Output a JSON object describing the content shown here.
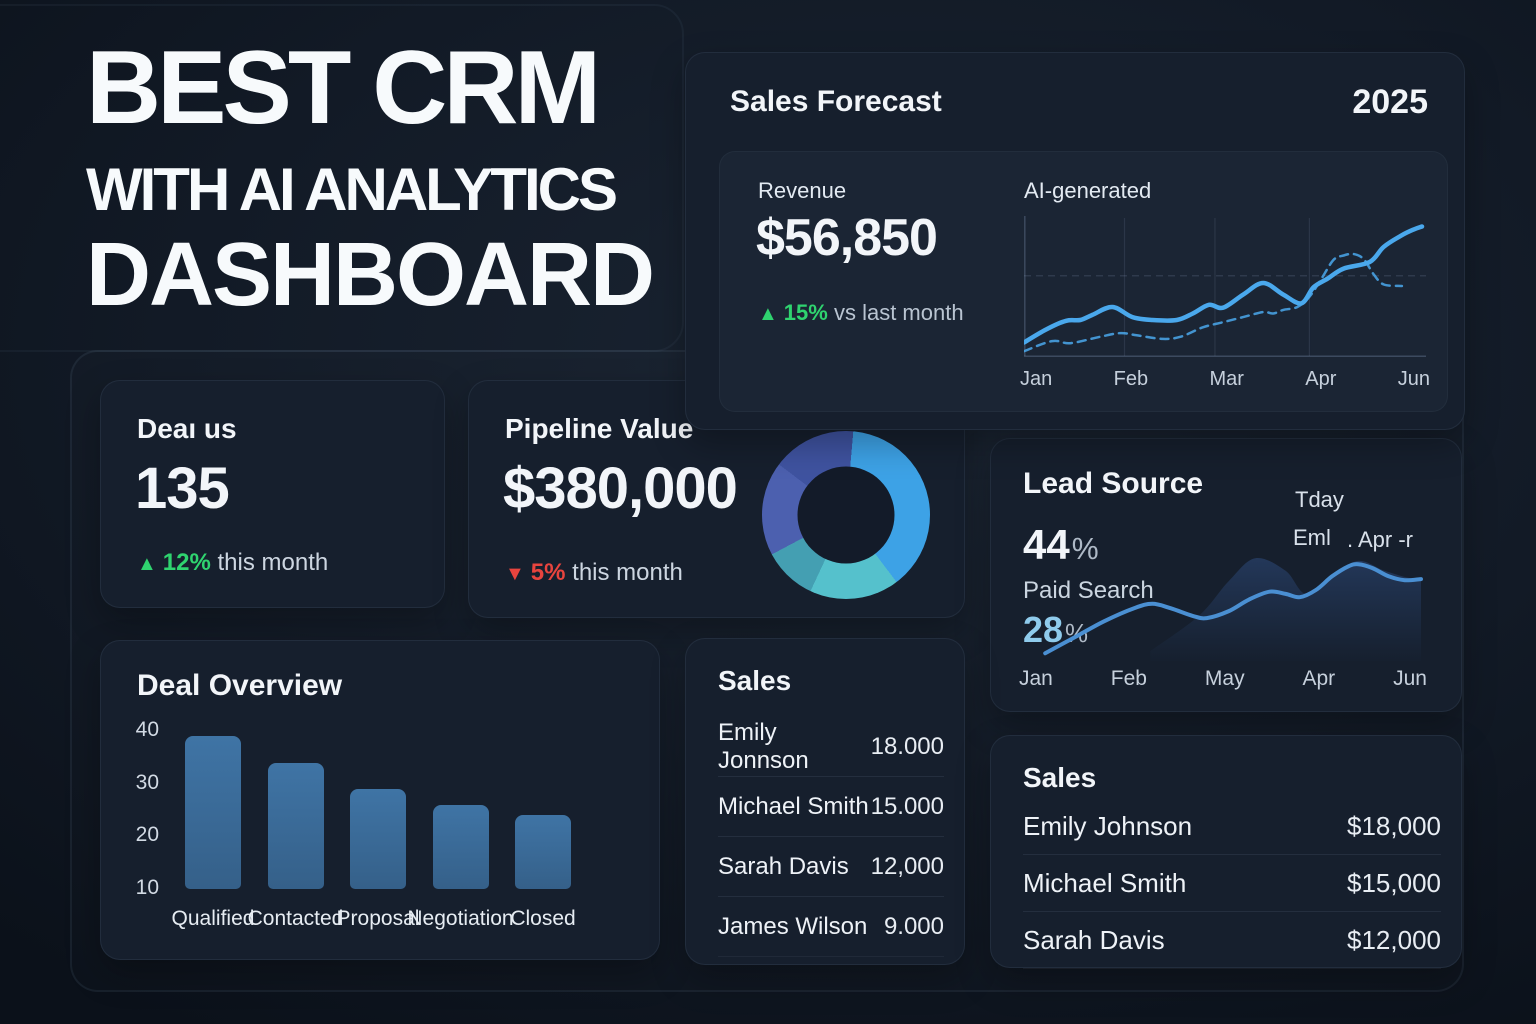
{
  "theme": {
    "accent_blue": "#4aa8ec",
    "green": "#2fd36f",
    "red": "#e8443e",
    "card_bg": "#161f2d"
  },
  "title": {
    "line1": "BEST CRM",
    "line2": "WITH AI ANALYTICS",
    "line3": "DASHBOARD"
  },
  "sales_forecast": {
    "title": "Sales Forecast",
    "year": "2025",
    "revenue_label": "Revenue",
    "revenue_value": "$56,850",
    "delta_pct": "15%",
    "delta_note": "vs last month",
    "ai_label": "AI-generated",
    "chart_data": {
      "type": "line",
      "x_labels": [
        "Jan",
        "Feb",
        "Mar",
        "Apr",
        "Jun"
      ],
      "legend_position": "none",
      "grid": true,
      "series": [
        {
          "name": "forecast",
          "style": "dashed",
          "color": "#4aa8ec",
          "width": 2.5,
          "points": [
            [
              0,
              96
            ],
            [
              7,
              89
            ],
            [
              11.5,
              90.5
            ],
            [
              19,
              86
            ],
            [
              24,
              83.5
            ],
            [
              28,
              85
            ],
            [
              34.5,
              87.5
            ],
            [
              39,
              86
            ],
            [
              44.5,
              79.5
            ],
            [
              49.5,
              76
            ],
            [
              54.5,
              72.5
            ],
            [
              59.5,
              69
            ],
            [
              62,
              70
            ],
            [
              64.5,
              67.5
            ],
            [
              68,
              65.5
            ],
            [
              71,
              58.5
            ],
            [
              74,
              46
            ],
            [
              77,
              33
            ],
            [
              79.5,
              30
            ],
            [
              82,
              29
            ],
            [
              84.5,
              32.5
            ],
            [
              87,
              43
            ],
            [
              89.5,
              50
            ],
            [
              94,
              51
            ]
          ]
        },
        {
          "name": "revenue",
          "style": "solid",
          "color": "#4aa8ec",
          "width": 4.5,
          "points": [
            [
              0,
              90
            ],
            [
              5.5,
              81
            ],
            [
              10.5,
              75
            ],
            [
              14,
              74.5
            ],
            [
              17,
              71
            ],
            [
              22,
              65.5
            ],
            [
              27,
              72.5
            ],
            [
              32,
              74.5
            ],
            [
              38,
              74.5
            ],
            [
              42,
              70
            ],
            [
              46,
              64
            ],
            [
              49.5,
              66
            ],
            [
              54.5,
              57
            ],
            [
              59.5,
              49
            ],
            [
              64.5,
              57
            ],
            [
              69,
              63
            ],
            [
              72,
              52
            ],
            [
              75.5,
              46
            ],
            [
              79.5,
              39
            ],
            [
              86,
              34.5
            ],
            [
              89.5,
              24
            ],
            [
              94,
              16
            ],
            [
              97,
              12
            ],
            [
              99,
              10
            ]
          ]
        }
      ]
    }
  },
  "deal_status": {
    "title": "Deaı us",
    "value": "135",
    "trend_icon": "▲",
    "delta_pct": "12%",
    "delta_note": "this month"
  },
  "pipeline": {
    "title": "Pipeline Value",
    "value": "$380,000",
    "trend_icon": "▼",
    "delta_pct": "5%",
    "delta_note": "this month",
    "chart_data": {
      "type": "donut",
      "start_deg": 5,
      "segments": [
        {
          "label": "segment-1",
          "color": "#3da2e6",
          "sweep_deg": 138
        },
        {
          "label": "segment-2",
          "color": "#55c1cc",
          "sweep_deg": 62
        },
        {
          "label": "segment-3",
          "color": "#449fb2",
          "sweep_deg": 37
        },
        {
          "label": "segment-4",
          "color": "#4c60af",
          "sweep_deg": 65
        },
        {
          "label": "segment-5",
          "color": "#3f53a0",
          "sweep_deg": 58
        }
      ]
    }
  },
  "lead_source": {
    "title": "Lead Source",
    "primary_pct": "44",
    "secondary_label": "Paid Search",
    "secondary_pct": "28",
    "legend": [
      "Tday",
      "Eml",
      ". Apr -r"
    ],
    "chart_data": {
      "type": "area",
      "x_labels": [
        "Jan",
        "Feb",
        "May",
        "Apr",
        "Jun"
      ],
      "line_color": "#4a8fd2",
      "line_points": [
        [
          6,
          93
        ],
        [
          14,
          77
        ],
        [
          20.5,
          64
        ],
        [
          28,
          52
        ],
        [
          32.5,
          48
        ],
        [
          37,
          52
        ],
        [
          42.5,
          59
        ],
        [
          46,
          61
        ],
        [
          51.5,
          54.5
        ],
        [
          56.5,
          44
        ],
        [
          61.5,
          37
        ],
        [
          65.5,
          39
        ],
        [
          69,
          42
        ],
        [
          73,
          35.5
        ],
        [
          77,
          23
        ],
        [
          81,
          14
        ],
        [
          83.5,
          12
        ],
        [
          87,
          15.5
        ],
        [
          91,
          23
        ],
        [
          95,
          26.5
        ],
        [
          99,
          25.5
        ]
      ],
      "area_points": [
        [
          32,
          91
        ],
        [
          44,
          59
        ],
        [
          51.5,
          27
        ],
        [
          58,
          6.5
        ],
        [
          65.5,
          18
        ],
        [
          70.5,
          39
        ],
        [
          77,
          23
        ],
        [
          83.5,
          9
        ],
        [
          90,
          18
        ],
        [
          96,
          24.5
        ],
        [
          99,
          25.5
        ]
      ]
    }
  },
  "deal_overview": {
    "title": "Deal Overview",
    "chart_data": {
      "type": "bar",
      "categories": [
        "Qualified",
        "Contacted",
        "Proposal",
        "Negotiation",
        "Closed"
      ],
      "values": [
        39,
        34,
        29,
        26,
        24
      ],
      "y_ticks": [
        40,
        30,
        20,
        10
      ],
      "y_base": 10,
      "bar_color": "#3a6b99"
    }
  },
  "sales_center": {
    "title": "Sales",
    "rows": [
      {
        "name": "Emily Jonnson",
        "value": "18.000"
      },
      {
        "name": "Michael Smith",
        "value": "15.000"
      },
      {
        "name": "Sarah Davis",
        "value": "12,000"
      },
      {
        "name": "James Wilson",
        "value": "9.000"
      }
    ]
  },
  "sales_right": {
    "title": "Sales",
    "rows": [
      {
        "name": "Emily Johnson",
        "value": "$18,000"
      },
      {
        "name": "Michael Smith",
        "value": "$15,000"
      },
      {
        "name": "Sarah Davis",
        "value": "$12,000"
      }
    ]
  }
}
